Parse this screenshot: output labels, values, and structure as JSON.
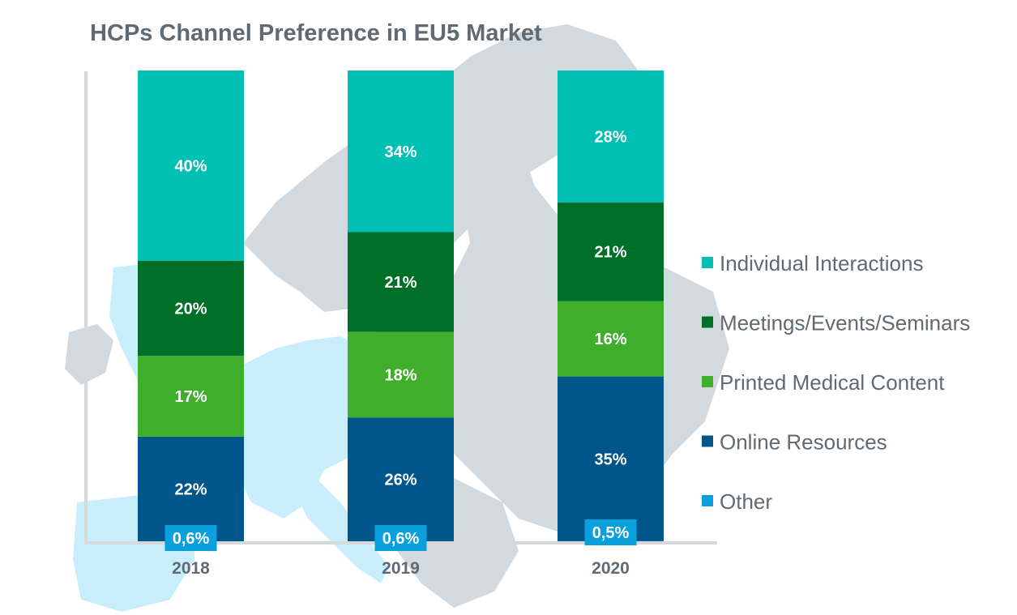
{
  "chart_data": {
    "type": "bar",
    "stacked": true,
    "title": "HCPs Channel Preference in EU5 Market",
    "categories": [
      "2018",
      "2019",
      "2020"
    ],
    "series": [
      {
        "name": "Online Resources",
        "values": [
          22,
          26,
          35
        ],
        "labels": [
          "22%",
          "26%",
          "35%"
        ],
        "color": "#00558a"
      },
      {
        "name": "Printed Medical Content",
        "values": [
          17,
          18,
          16
        ],
        "labels": [
          "17%",
          "18%",
          "16%"
        ],
        "color": "#3fae2a"
      },
      {
        "name": "Meetings/Events/Seminars",
        "values": [
          20,
          21,
          21
        ],
        "labels": [
          "20%",
          "21%",
          "21%"
        ],
        "color": "#006f27"
      },
      {
        "name": "Individual Interactions",
        "values": [
          40,
          34,
          28
        ],
        "labels": [
          "40%",
          "34%",
          "28%"
        ],
        "color": "#00bfb3"
      }
    ],
    "other": {
      "name": "Other",
      "values": [
        0.6,
        0.6,
        0.5
      ],
      "labels": [
        "0,6%",
        "0,6%",
        "0,5%"
      ],
      "color": "#0aa0de"
    },
    "legend": {
      "position": "right",
      "order": [
        "Individual Interactions",
        "Meetings/Events/Seminars",
        "Printed Medical Content",
        "Online Resources",
        "Other"
      ]
    },
    "ylim": [
      0,
      100
    ],
    "grid": false
  },
  "background": {
    "map_color": "#d3dadf",
    "highlight_color": "#c9eefb",
    "axis_color": "#d6d9dc"
  }
}
